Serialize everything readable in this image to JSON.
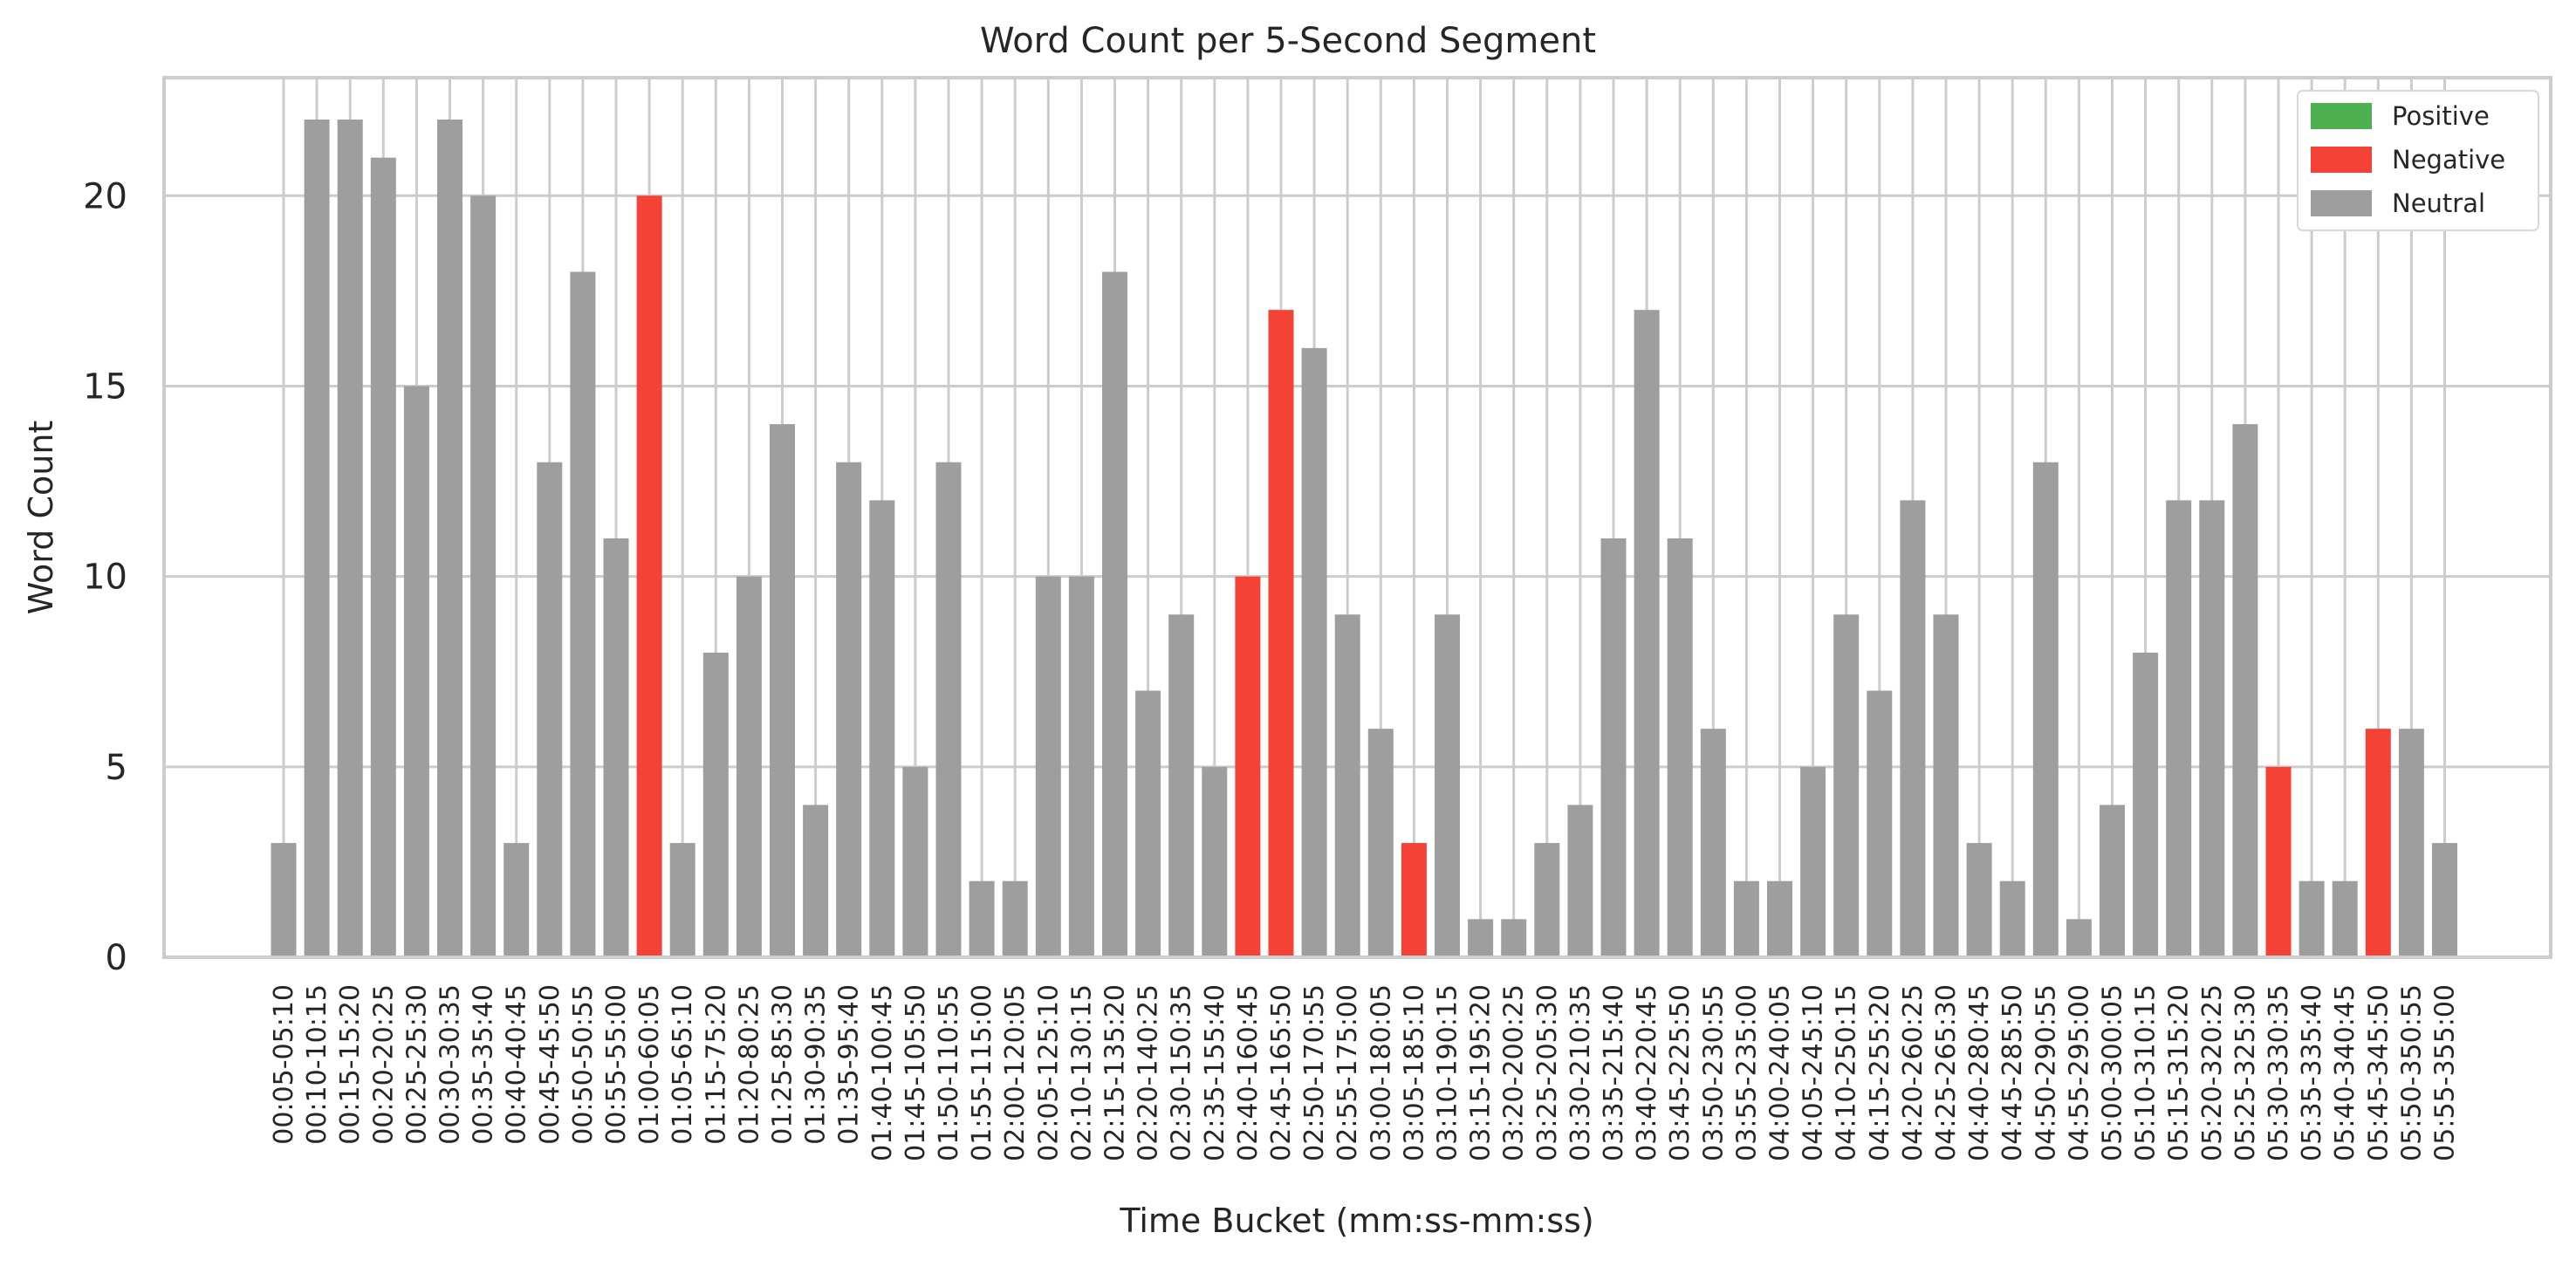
{
  "chart_data": {
    "type": "bar",
    "title": "Word Count per 5-Second Segment",
    "xlabel": "Time Bucket (mm:ss-mm:ss)",
    "ylabel": "Word Count",
    "ylim": [
      0,
      23.1
    ],
    "yticks": [
      0,
      5,
      10,
      15,
      20
    ],
    "grid": true,
    "legend": {
      "position": "top-right",
      "entries": [
        {
          "name": "Positive",
          "color": "#4caf50"
        },
        {
          "name": "Negative",
          "color": "#f44336"
        },
        {
          "name": "Neutral",
          "color": "#9e9e9e"
        }
      ]
    },
    "categories": [
      "00:05-05:10",
      "00:10-10:15",
      "00:15-15:20",
      "00:20-20:25",
      "00:25-25:30",
      "00:30-30:35",
      "00:35-35:40",
      "00:40-40:45",
      "00:45-45:50",
      "00:50-50:55",
      "00:55-55:00",
      "01:00-60:05",
      "01:05-65:10",
      "01:15-75:20",
      "01:20-80:25",
      "01:25-85:30",
      "01:30-90:35",
      "01:35-95:40",
      "01:40-100:45",
      "01:45-105:50",
      "01:50-110:55",
      "01:55-115:00",
      "02:00-120:05",
      "02:05-125:10",
      "02:10-130:15",
      "02:15-135:20",
      "02:20-140:25",
      "02:30-150:35",
      "02:35-155:40",
      "02:40-160:45",
      "02:45-165:50",
      "02:50-170:55",
      "02:55-175:00",
      "03:00-180:05",
      "03:05-185:10",
      "03:10-190:15",
      "03:15-195:20",
      "03:20-200:25",
      "03:25-205:30",
      "03:30-210:35",
      "03:35-215:40",
      "03:40-220:45",
      "03:45-225:50",
      "03:50-230:55",
      "03:55-235:00",
      "04:00-240:05",
      "04:05-245:10",
      "04:10-250:15",
      "04:15-255:20",
      "04:20-260:25",
      "04:25-265:30",
      "04:40-280:45",
      "04:45-285:50",
      "04:50-290:55",
      "04:55-295:00",
      "05:00-300:05",
      "05:10-310:15",
      "05:15-315:20",
      "05:20-320:25",
      "05:25-325:30",
      "05:30-330:35",
      "05:35-335:40",
      "05:40-340:45",
      "05:45-345:50",
      "05:50-350:55",
      "05:55-355:00"
    ],
    "values": [
      3,
      22,
      22,
      21,
      15,
      22,
      20,
      3,
      13,
      18,
      11,
      20,
      3,
      8,
      10,
      14,
      4,
      13,
      12,
      5,
      13,
      2,
      2,
      10,
      10,
      18,
      7,
      9,
      5,
      10,
      17,
      16,
      9,
      6,
      3,
      9,
      1,
      1,
      3,
      4,
      11,
      17,
      11,
      6,
      2,
      2,
      5,
      9,
      7,
      12,
      9,
      3,
      2,
      13,
      1,
      4,
      8,
      12,
      12,
      14,
      5,
      2,
      2,
      6,
      6,
      3
    ],
    "sentiment": [
      "Neutral",
      "Neutral",
      "Neutral",
      "Neutral",
      "Neutral",
      "Neutral",
      "Neutral",
      "Neutral",
      "Neutral",
      "Neutral",
      "Neutral",
      "Negative",
      "Neutral",
      "Neutral",
      "Neutral",
      "Neutral",
      "Neutral",
      "Neutral",
      "Neutral",
      "Neutral",
      "Neutral",
      "Neutral",
      "Neutral",
      "Neutral",
      "Neutral",
      "Neutral",
      "Neutral",
      "Neutral",
      "Neutral",
      "Negative",
      "Negative",
      "Neutral",
      "Neutral",
      "Neutral",
      "Negative",
      "Neutral",
      "Neutral",
      "Neutral",
      "Neutral",
      "Neutral",
      "Neutral",
      "Neutral",
      "Neutral",
      "Neutral",
      "Neutral",
      "Neutral",
      "Neutral",
      "Neutral",
      "Neutral",
      "Neutral",
      "Neutral",
      "Neutral",
      "Neutral",
      "Neutral",
      "Neutral",
      "Neutral",
      "Neutral",
      "Neutral",
      "Neutral",
      "Neutral",
      "Negative",
      "Neutral",
      "Neutral",
      "Negative",
      "Neutral",
      "Neutral"
    ]
  }
}
